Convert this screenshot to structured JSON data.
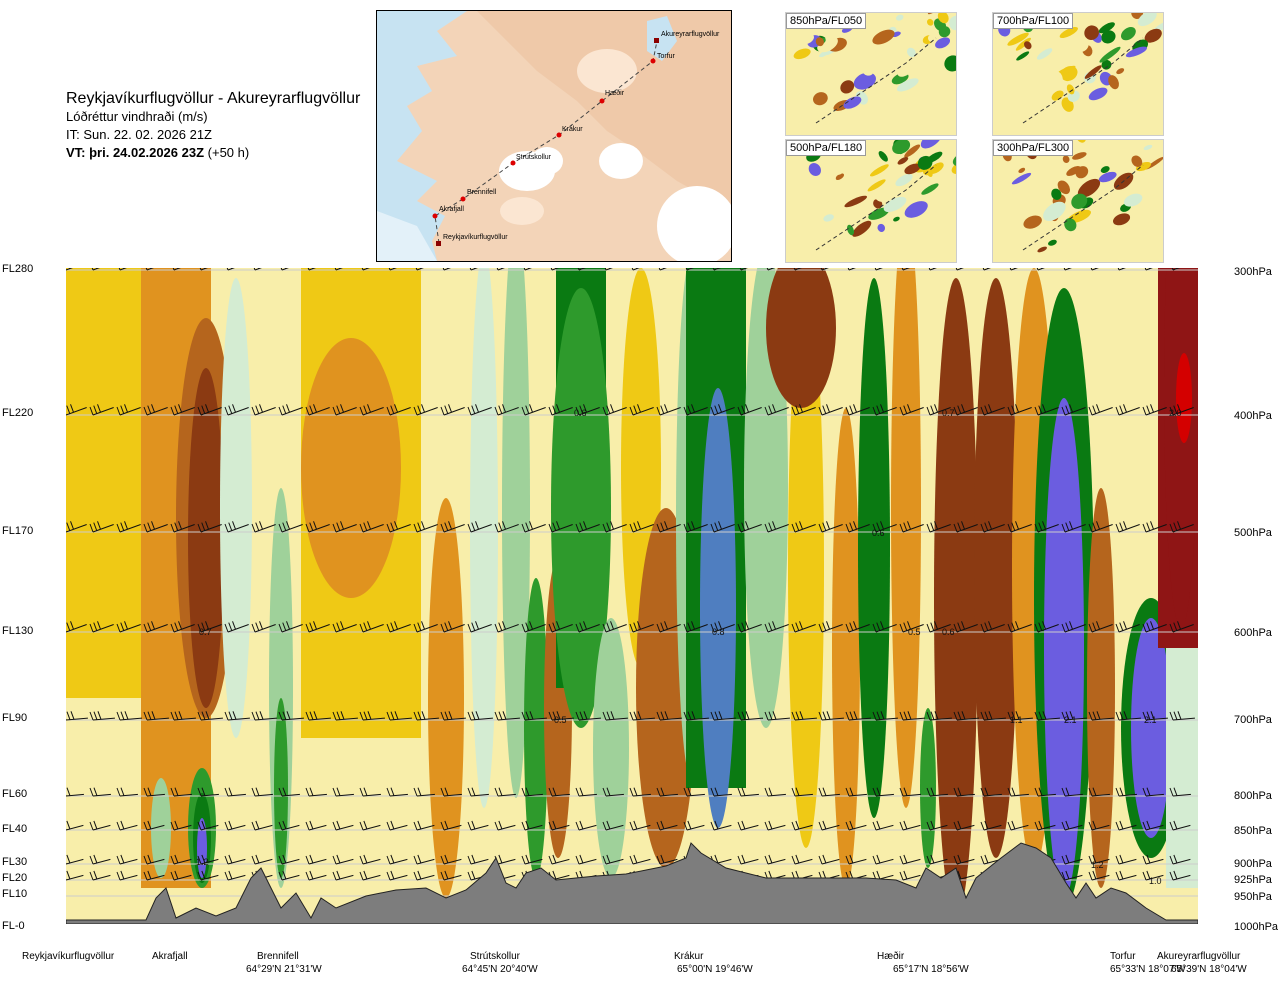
{
  "header": {
    "title": "Reykjavíkurflugvöllur - Akureyrarflugvöllur",
    "subtitle": "Lóðréttur vindhraði (m/s)",
    "issue_time": "IT: Sun. 22. 02. 2026 21Z",
    "valid_prefix": "VT: þri. 24.02.2026 23Z",
    "valid_suffix": " (+50 h)"
  },
  "map": {
    "points": [
      {
        "label": "Akureyrarflugvöllur",
        "type": "airport"
      },
      {
        "label": "Torfur",
        "type": "waypoint"
      },
      {
        "label": "Hæðir",
        "type": "waypoint"
      },
      {
        "label": "Krákur",
        "type": "waypoint"
      },
      {
        "label": "Strútskollur",
        "type": "waypoint"
      },
      {
        "label": "Brennifell",
        "type": "waypoint"
      },
      {
        "label": "Akrafjall",
        "type": "waypoint"
      },
      {
        "label": "Reykjavíkurflugvöllur",
        "type": "airport"
      }
    ]
  },
  "mini_maps": [
    {
      "label": "850hPa/FL050"
    },
    {
      "label": "700hPa/FL100"
    },
    {
      "label": "500hPa/FL180"
    },
    {
      "label": "300hPa/FL300"
    }
  ],
  "levels": [
    {
      "fl": "FL280",
      "hpa": "300hPa"
    },
    {
      "fl": "FL220",
      "hpa": "400hPa"
    },
    {
      "fl": "FL170",
      "hpa": "500hPa"
    },
    {
      "fl": "FL130",
      "hpa": "600hPa"
    },
    {
      "fl": "FL90",
      "hpa": "700hPa"
    },
    {
      "fl": "FL60",
      "hpa": "800hPa"
    },
    {
      "fl": "FL40",
      "hpa": "850hPa"
    },
    {
      "fl": "FL30",
      "hpa": "900hPa"
    },
    {
      "fl": "FL20",
      "hpa": "925hPa"
    },
    {
      "fl": "FL10",
      "hpa": "950hPa"
    },
    {
      "fl": "FL-0",
      "hpa": "1000hPa"
    }
  ],
  "locations": [
    {
      "name": "Reykjavíkurflugvöllur",
      "coord": ""
    },
    {
      "name": "Akrafjall",
      "coord": ""
    },
    {
      "name": "Brennifell",
      "coord": "64°29'N 21°31'W"
    },
    {
      "name": "Strútskollur",
      "coord": "64°45'N 20°40'W"
    },
    {
      "name": "Krákur",
      "coord": "65°00'N 19°46'W"
    },
    {
      "name": "Hæðir",
      "coord": "65°17'N 18°56'W"
    },
    {
      "name": "Torfur",
      "coord": "65°33'N 18°07'W"
    },
    {
      "name": "Akureyrarflugvöllur",
      "coord": "65°39'N 18°04'W"
    }
  ],
  "value_labels": [
    {
      "text": "0.6"
    },
    {
      "text": "0.7"
    },
    {
      "text": "2.0"
    },
    {
      "text": "0.6"
    },
    {
      "text": "0.7"
    },
    {
      "text": "0.8"
    },
    {
      "text": "0.5"
    },
    {
      "text": "0.6"
    },
    {
      "text": "0.5"
    },
    {
      "text": "1.1"
    },
    {
      "text": "2.1"
    },
    {
      "text": "2.1"
    },
    {
      "text": "1.2"
    },
    {
      "text": "1.2"
    },
    {
      "text": "1.0"
    }
  ],
  "colors": {
    "brown_dark": "#8b3a12",
    "brown": "#b5651d",
    "orange": "#e0931f",
    "yellow": "#efc915",
    "pale_yellow": "#f8eeaa",
    "pale_green": "#d4ecd2",
    "light_green": "#9fd19a",
    "green": "#2e9a2c",
    "dark_green": "#0a7a12",
    "blue": "#4f7ec0",
    "purple": "#6b5de0",
    "dark_red": "#8f1515",
    "terrain": "#7d7d7d"
  }
}
